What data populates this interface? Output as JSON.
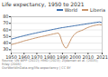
{
  "chart_data": {
    "type": "line",
    "title": "Life expectancy, 1950 to 2021",
    "x": [
      1950,
      1951,
      1952,
      1953,
      1954,
      1955,
      1956,
      1957,
      1958,
      1959,
      1960,
      1961,
      1962,
      1963,
      1964,
      1965,
      1966,
      1967,
      1968,
      1969,
      1970,
      1971,
      1972,
      1973,
      1974,
      1975,
      1976,
      1977,
      1978,
      1979,
      1980,
      1981,
      1982,
      1983,
      1984,
      1985,
      1986,
      1987,
      1988,
      1989,
      1990,
      1991,
      1992,
      1993,
      1994,
      1995,
      1996,
      1997,
      1998,
      1999,
      2000,
      2001,
      2002,
      2003,
      2004,
      2005,
      2006,
      2007,
      2008,
      2009,
      2010,
      2011,
      2012,
      2013,
      2014,
      2015,
      2016,
      2017,
      2018,
      2019,
      2020,
      2021
    ],
    "series": [
      {
        "name": "World",
        "color": "#3d6fad",
        "values": [
          46.0,
          46.5,
          47.1,
          47.6,
          48.1,
          48.7,
          49.2,
          49.7,
          50.2,
          50.7,
          51.2,
          51.7,
          52.1,
          52.6,
          53.0,
          53.5,
          53.9,
          54.4,
          54.8,
          55.2,
          55.7,
          56.1,
          56.5,
          56.9,
          57.3,
          57.7,
          58.1,
          58.5,
          58.9,
          59.3,
          59.7,
          60.1,
          60.5,
          60.9,
          61.3,
          61.7,
          62.1,
          62.5,
          62.8,
          63.2,
          63.5,
          63.8,
          64.1,
          64.4,
          64.7,
          65.0,
          65.3,
          65.6,
          65.9,
          66.2,
          66.5,
          66.8,
          67.1,
          67.4,
          67.7,
          68.0,
          68.3,
          68.6,
          68.9,
          69.2,
          69.5,
          69.8,
          70.1,
          70.4,
          70.7,
          71.0,
          71.3,
          71.6,
          71.9,
          72.2,
          71.5,
          71.0
        ]
      },
      {
        "name": "Liberia",
        "color": "#c8956c",
        "values": [
          37.7,
          38.2,
          38.7,
          39.2,
          39.8,
          40.3,
          40.9,
          41.5,
          42.1,
          42.7,
          43.3,
          43.8,
          44.3,
          44.8,
          45.3,
          45.8,
          46.3,
          46.8,
          47.3,
          47.8,
          48.2,
          48.7,
          49.1,
          49.6,
          50.0,
          50.5,
          50.9,
          51.4,
          51.8,
          52.2,
          52.6,
          53.0,
          53.5,
          53.9,
          54.3,
          54.7,
          55.1,
          55.0,
          52.0,
          46.0,
          40.0,
          36.5,
          33.5,
          32.5,
          35.0,
          39.0,
          43.0,
          47.0,
          50.0,
          52.5,
          54.5,
          56.0,
          57.0,
          57.8,
          58.5,
          59.2,
          60.0,
          61.0,
          62.0,
          63.0,
          63.8,
          64.5,
          65.2,
          65.8,
          66.3,
          66.8,
          67.2,
          67.5,
          67.8,
          68.0,
          67.5,
          67.8
        ]
      }
    ],
    "xlim": [
      1950,
      2021
    ],
    "xticks": [
      1950,
      1960,
      1970,
      1980,
      1990,
      2000,
      2010,
      2021
    ],
    "ylim": [
      25,
      80
    ],
    "yticks": [
      30,
      40,
      50,
      60,
      70,
      80
    ],
    "grid": true,
    "legend": "upper right",
    "annotation": "Source: UN WPP (2022); HMD (2023); Zijdeman et al. (2015); Riley (2005)\nOurWorldInData.org/life-expectancy | CC BY"
  }
}
